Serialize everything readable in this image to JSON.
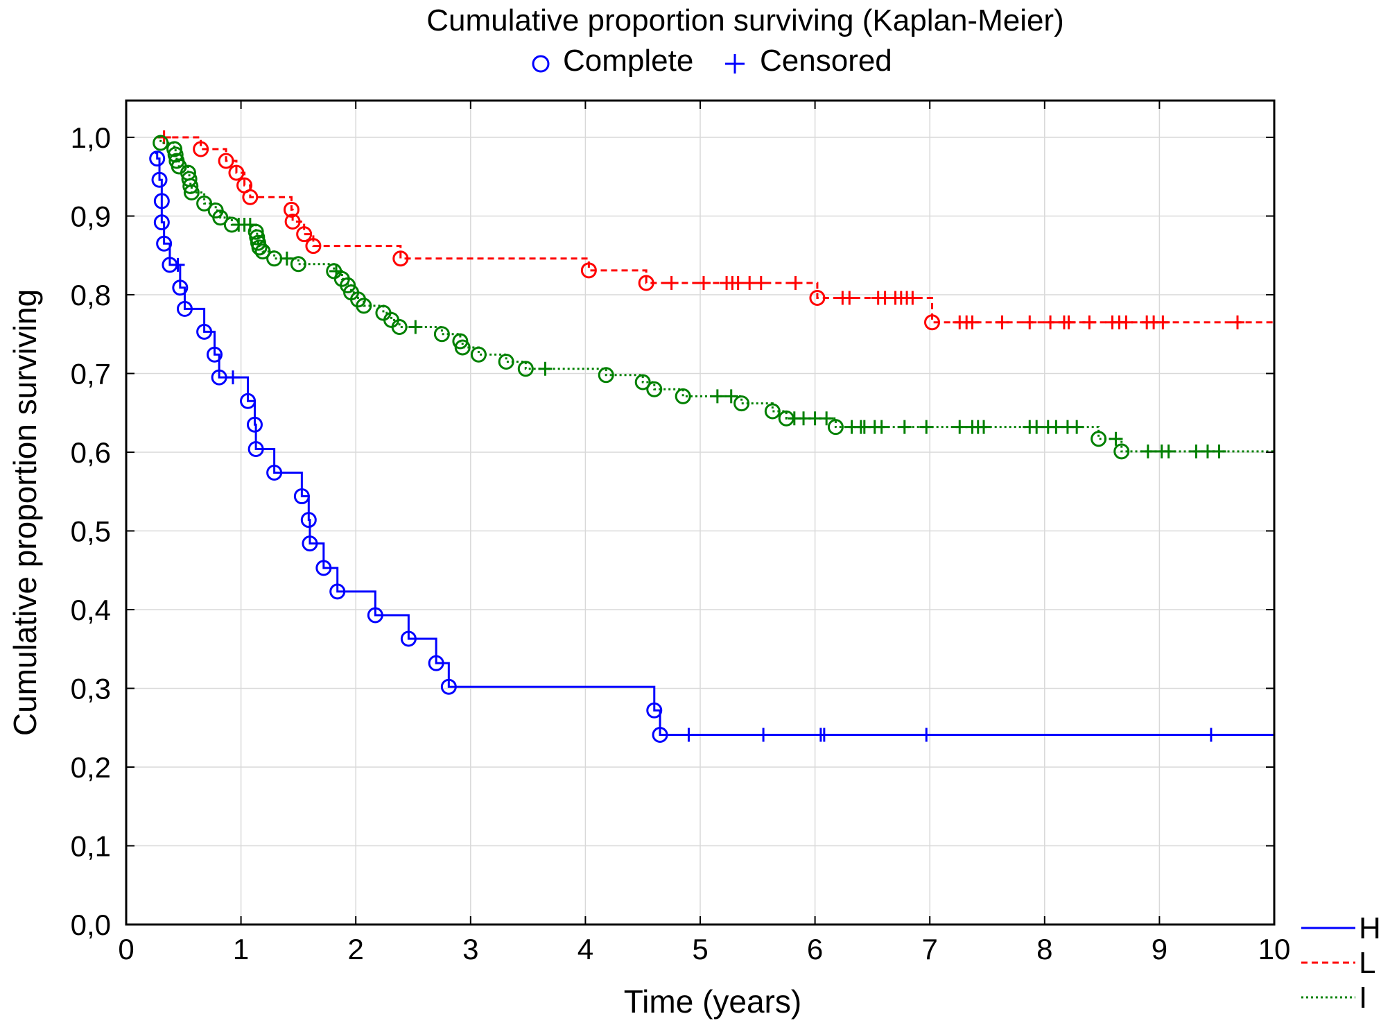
{
  "chart_data": {
    "type": "line",
    "title": "Cumulative proportion surviving (Kaplan-Meier)",
    "marker_legend": {
      "complete_label": "Complete",
      "censored_label": "Censored",
      "complete_symbol": "circle",
      "censored_symbol": "plus",
      "color": "#0000ff"
    },
    "xlabel": "Time (years)",
    "ylabel": "Cumulative proportion surviving",
    "xlim": [
      0,
      10
    ],
    "ylim": [
      0,
      1
    ],
    "x_ticks": [
      "0",
      "1",
      "2",
      "3",
      "4",
      "5",
      "6",
      "7",
      "8",
      "9",
      "10"
    ],
    "y_ticks": [
      "0,0",
      "0,1",
      "0,2",
      "0,3",
      "0,4",
      "0,5",
      "0,6",
      "0,7",
      "0,8",
      "0,9",
      "1,0"
    ],
    "grid": true,
    "legend_position": "bottom-right",
    "series": [
      {
        "name": "H",
        "color": "#0000ff",
        "line_style": "solid",
        "start": 0.98,
        "events": [
          0.27,
          0.29,
          0.31,
          0.31,
          0.33,
          0.38,
          0.47,
          0.51,
          0.68,
          0.77,
          0.81,
          1.06,
          1.12,
          1.13,
          1.29,
          1.53,
          1.59,
          1.6,
          1.72,
          1.84,
          2.17,
          2.46,
          2.7,
          2.81,
          4.6,
          4.65
        ],
        "survival": [
          0.973,
          0.946,
          0.919,
          0.892,
          0.865,
          0.838,
          0.809,
          0.782,
          0.753,
          0.724,
          0.695,
          0.665,
          0.635,
          0.604,
          0.574,
          0.544,
          0.514,
          0.484,
          0.453,
          0.423,
          0.393,
          0.363,
          0.332,
          0.302,
          0.272,
          0.241
        ],
        "censored": [
          0.45,
          0.93,
          4.9,
          5.55,
          6.05,
          6.08,
          6.97,
          9.45
        ]
      },
      {
        "name": "L",
        "color": "#ff0000",
        "line_style": "dashed",
        "start": 1.0,
        "events": [
          0.65,
          0.87,
          0.96,
          1.03,
          1.08,
          1.44,
          1.45,
          1.55,
          1.63,
          2.39,
          4.03,
          4.53,
          6.02,
          7.02
        ],
        "survival": [
          0.985,
          0.97,
          0.955,
          0.939,
          0.924,
          0.908,
          0.893,
          0.877,
          0.862,
          0.846,
          0.831,
          0.815,
          0.796,
          0.765
        ],
        "censored": [
          0.33,
          4.75,
          5.03,
          5.23,
          5.28,
          5.33,
          5.43,
          5.53,
          5.83,
          6.24,
          6.3,
          6.55,
          6.61,
          6.7,
          6.75,
          6.8,
          6.85,
          7.26,
          7.32,
          7.37,
          7.63,
          7.87,
          8.05,
          8.17,
          8.21,
          8.39,
          8.59,
          8.65,
          8.71,
          8.89,
          8.95,
          9.03,
          9.68
        ]
      },
      {
        "name": "I",
        "color": "#008000",
        "line_style": "dotted",
        "start": 1.0,
        "events": [
          0.3,
          0.42,
          0.43,
          0.44,
          0.46,
          0.54,
          0.55,
          0.56,
          0.57,
          0.68,
          0.78,
          0.82,
          0.92,
          1.13,
          1.14,
          1.15,
          1.16,
          1.19,
          1.29,
          1.5,
          1.81,
          1.88,
          1.93,
          1.96,
          2.02,
          2.07,
          2.24,
          2.31,
          2.38,
          2.75,
          2.91,
          2.93,
          3.07,
          3.31,
          3.48,
          4.18,
          4.5,
          4.6,
          4.85,
          5.36,
          5.63,
          5.75,
          6.18,
          8.47,
          8.67
        ],
        "survival": [
          0.993,
          0.985,
          0.978,
          0.97,
          0.963,
          0.955,
          0.947,
          0.938,
          0.93,
          0.916,
          0.907,
          0.898,
          0.889,
          0.88,
          0.873,
          0.866,
          0.86,
          0.855,
          0.846,
          0.839,
          0.83,
          0.82,
          0.812,
          0.803,
          0.794,
          0.786,
          0.777,
          0.768,
          0.759,
          0.75,
          0.741,
          0.733,
          0.724,
          0.715,
          0.706,
          0.698,
          0.689,
          0.68,
          0.671,
          0.662,
          0.652,
          0.643,
          0.632,
          0.617,
          0.601
        ],
        "censored": [
          0.98,
          1.03,
          1.08,
          1.4,
          1.83,
          2.52,
          3.65,
          5.15,
          5.27,
          5.82,
          5.9,
          6.0,
          6.1,
          6.32,
          6.4,
          6.43,
          6.52,
          6.58,
          6.78,
          6.97,
          7.26,
          7.37,
          7.42,
          7.47,
          7.87,
          7.93,
          8.03,
          8.1,
          8.2,
          8.28,
          8.62,
          8.9,
          9.02,
          9.08,
          9.32,
          9.42,
          9.52
        ]
      }
    ]
  }
}
